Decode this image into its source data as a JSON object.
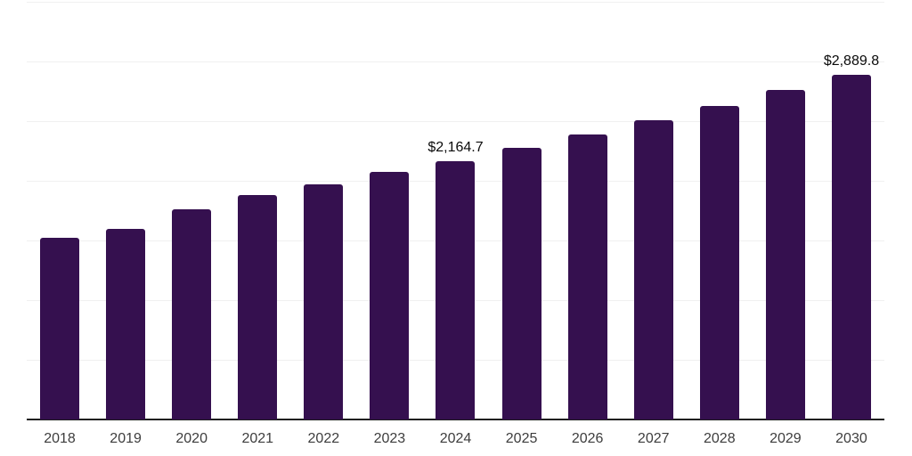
{
  "chart_data": {
    "type": "bar",
    "title": "",
    "xlabel": "",
    "ylabel": "",
    "categories": [
      "2018",
      "2019",
      "2020",
      "2021",
      "2022",
      "2023",
      "2024",
      "2025",
      "2026",
      "2027",
      "2028",
      "2029",
      "2030"
    ],
    "values": [
      1525,
      1595,
      1760,
      1883,
      1972,
      2077,
      2164.7,
      2276,
      2390,
      2505,
      2629,
      2760,
      2889.8
    ],
    "point_labels": [
      "",
      "",
      "",
      "",
      "",
      "",
      "$2,164.7",
      "",
      "",
      "",
      "",
      "",
      "$2,889.8"
    ],
    "ylim": [
      0,
      3500
    ],
    "gridline_step": 500,
    "grid": "horizontal-only",
    "legend": "none",
    "y_tick_labels_visible": false,
    "colors": {
      "bar": "#35104f",
      "gridline": "#f0f0f0",
      "axis_line": "#1f1f1f",
      "tick_label": "#3d3d3d",
      "data_label": "#0a0a0a",
      "background": "#ffffff"
    }
  }
}
